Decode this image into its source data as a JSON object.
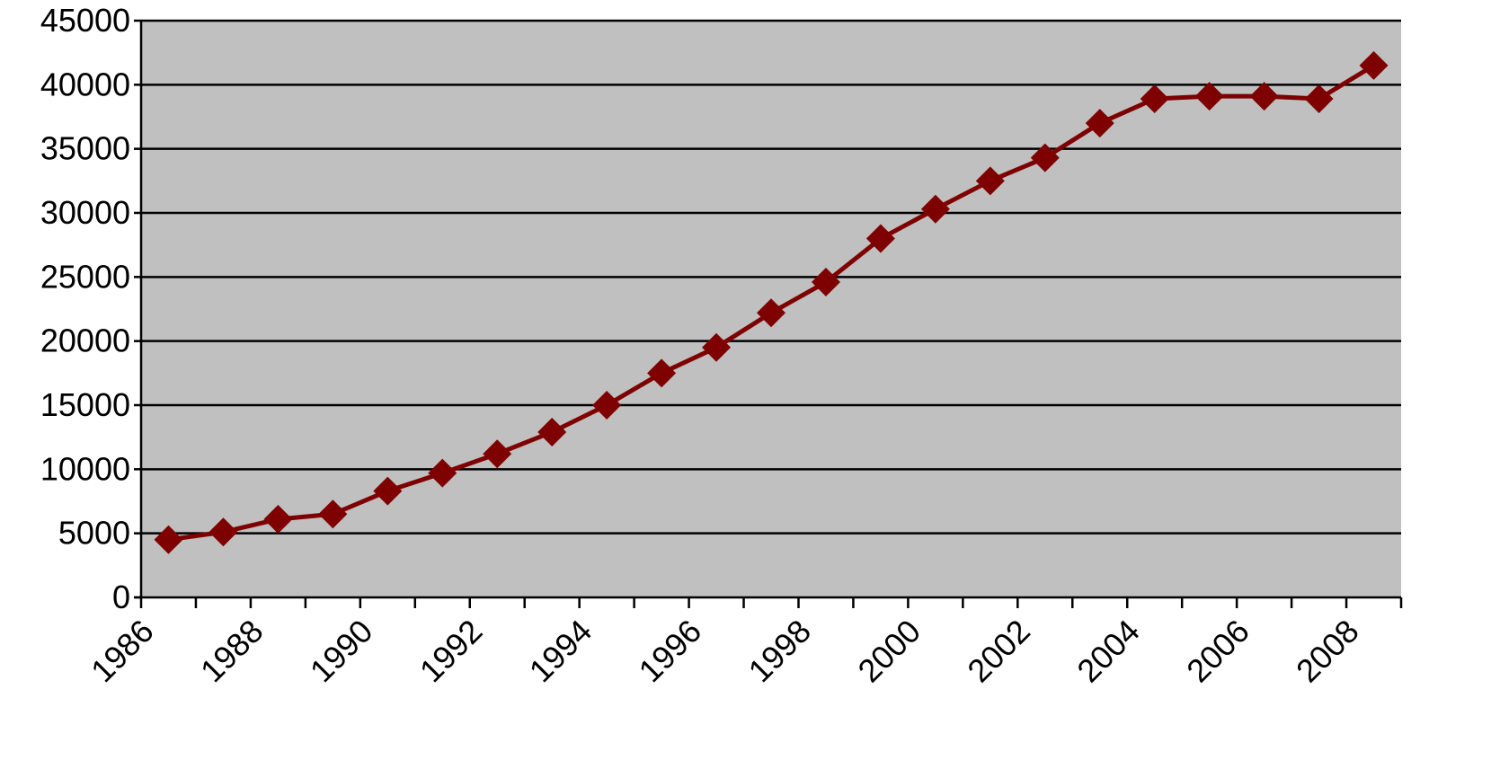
{
  "chart_data": {
    "type": "line",
    "title": "",
    "xlabel": "",
    "ylabel": "",
    "ylim": [
      0,
      45000
    ],
    "xlim": [
      1986,
      2009
    ],
    "grid": true,
    "legend": "none",
    "y_ticks": [
      0,
      5000,
      10000,
      15000,
      20000,
      25000,
      30000,
      35000,
      40000,
      45000
    ],
    "y_tick_labels": [
      "0",
      "5000",
      "10000",
      "15000",
      "20000",
      "25000",
      "30000",
      "35000",
      "40000",
      "45000"
    ],
    "x_tick_labels": [
      "1986",
      "1988",
      "1990",
      "1992",
      "1994",
      "1996",
      "1998",
      "2000",
      "2002",
      "2004",
      "2006",
      "2008"
    ],
    "x_tick_label_years": [
      1986,
      1988,
      1990,
      1992,
      1994,
      1996,
      1998,
      2000,
      2002,
      2004,
      2006,
      2008
    ],
    "colors": {
      "plot_background": "#c0c0c0",
      "series": "#7f0000",
      "gridline": "#000000",
      "axis": "#000000"
    },
    "series": [
      {
        "x": [
          1986,
          1987,
          1988,
          1989,
          1990,
          1991,
          1992,
          1993,
          1994,
          1995,
          1996,
          1997,
          1998,
          1999,
          2000,
          2001,
          2002,
          2003,
          2004,
          2005,
          2006,
          2007,
          2008
        ],
        "values": [
          4500,
          5100,
          6100,
          6500,
          8300,
          9700,
          11200,
          12900,
          15000,
          17500,
          19500,
          22200,
          24600,
          28000,
          30300,
          32500,
          34300,
          37000,
          38900,
          39100,
          39100,
          38900,
          41500
        ]
      }
    ]
  }
}
